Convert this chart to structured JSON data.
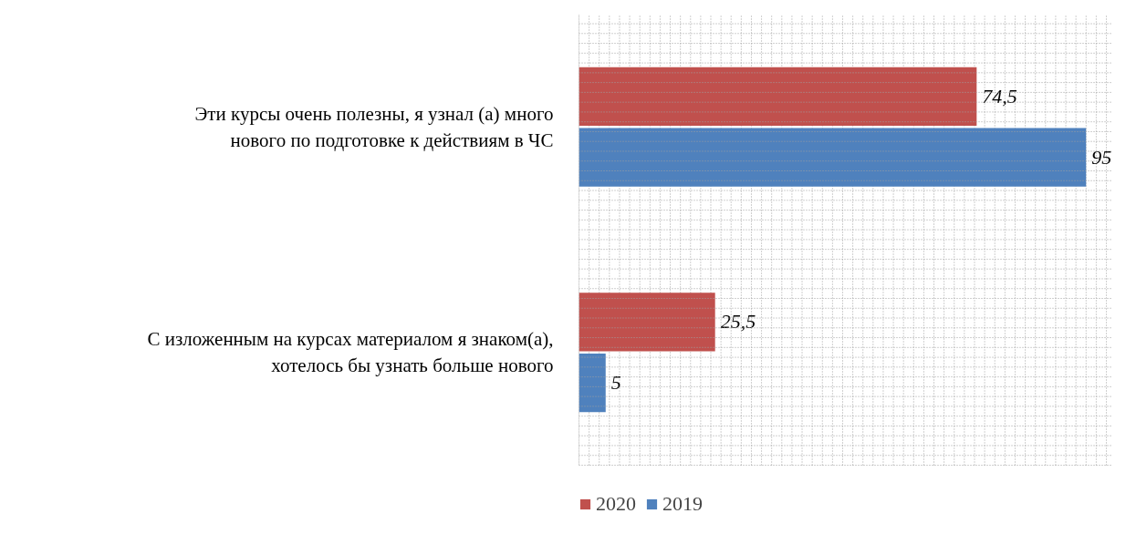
{
  "chart_data": {
    "type": "bar",
    "orientation": "horizontal",
    "categories": [
      "Эти курсы очень полезны, я узнал (а) много нового по подготовке к действиям в ЧС",
      "С изложенным на курсах материалом я знаком(а), хотелось бы узнать больше нового"
    ],
    "series": [
      {
        "name": "2020",
        "color": "#c0504d",
        "values": [
          74.5,
          25.5
        ],
        "value_labels": [
          "74,5",
          "25,5"
        ]
      },
      {
        "name": "2019",
        "color": "#4f81bd",
        "values": [
          95,
          5
        ],
        "value_labels": [
          "95",
          "5"
        ]
      }
    ],
    "xlim": [
      0,
      100
    ],
    "tick_labels": "y",
    "grid": true,
    "legend": "bottom"
  }
}
